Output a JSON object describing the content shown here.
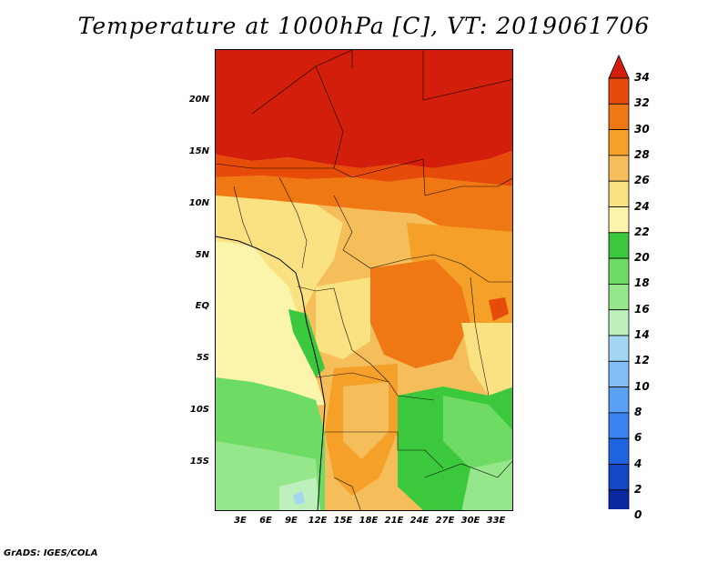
{
  "title": "Temperature at 1000hPa [C], VT: 2019061706",
  "credit": "GrADS: IGES/COLA",
  "lat_labels": [
    "20N",
    "15N",
    "10N",
    "5N",
    "EQ",
    "5S",
    "10S",
    "15S"
  ],
  "lon_labels": [
    "3E",
    "6E",
    "9E",
    "12E",
    "15E",
    "18E",
    "21E",
    "24E",
    "27E",
    "30E",
    "33E"
  ],
  "colorbar": {
    "labels": [
      "0",
      "2",
      "4",
      "6",
      "8",
      "10",
      "12",
      "14",
      "16",
      "18",
      "20",
      "22",
      "24",
      "26",
      "28",
      "30",
      "32",
      "34"
    ],
    "colors": [
      "#dcd2f0",
      "#0a0f78",
      "#0a28a0",
      "#1446c8",
      "#1e64e1",
      "#3c82f0",
      "#5aa0f5",
      "#82bef5",
      "#a5d7f5",
      "#bef0be",
      "#96e68c",
      "#6edc64",
      "#3cc83c",
      "#faf5aa",
      "#fae182",
      "#f5be5a",
      "#f5a028",
      "#f07814",
      "#e64b0a",
      "#d21e0a"
    ]
  }
}
